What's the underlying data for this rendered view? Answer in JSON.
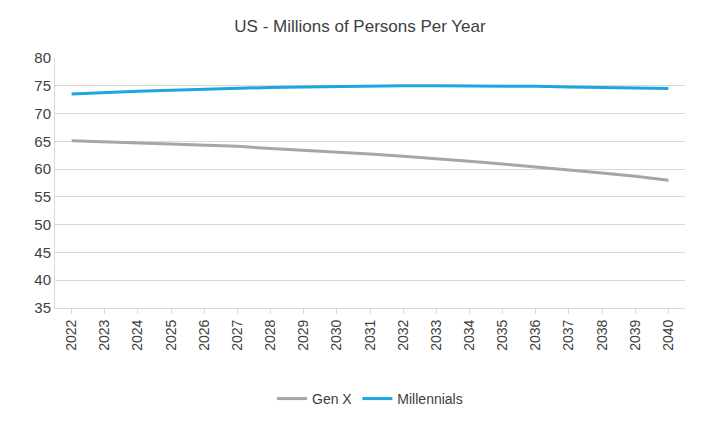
{
  "chart_data": {
    "type": "line",
    "title": "US - Millions of Persons Per Year",
    "categories": [
      "2022",
      "2023",
      "2024",
      "2025",
      "2026",
      "2027",
      "2028",
      "2029",
      "2030",
      "2031",
      "2032",
      "2033",
      "2034",
      "2035",
      "2036",
      "2037",
      "2038",
      "2039",
      "2040"
    ],
    "series": [
      {
        "name": "Gen X",
        "color": "#A6A6A6",
        "values": [
          65.1,
          64.9,
          64.7,
          64.5,
          64.3,
          64.1,
          63.7,
          63.4,
          63.0,
          62.7,
          62.3,
          61.9,
          61.4,
          60.9,
          60.4,
          59.9,
          59.3,
          58.7,
          58.0
        ]
      },
      {
        "name": "Millennials",
        "color": "#1BA6E0",
        "values": [
          73.5,
          73.8,
          74.0,
          74.2,
          74.4,
          74.6,
          74.7,
          74.8,
          74.9,
          74.9,
          75.0,
          75.0,
          75.0,
          75.0,
          74.9,
          74.8,
          74.7,
          74.6,
          74.5
        ]
      }
    ],
    "ylim": [
      35,
      80
    ],
    "yticks": [
      35,
      40,
      45,
      50,
      55,
      60,
      65,
      70,
      75,
      80
    ],
    "grid": true,
    "legend": "bottom"
  }
}
